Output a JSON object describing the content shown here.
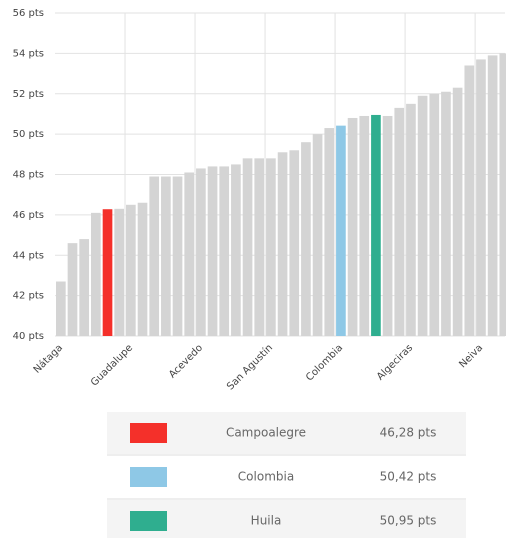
{
  "chart_data": {
    "type": "bar",
    "categories": [
      "Nátaga",
      null,
      null,
      null,
      null,
      null,
      "Guadalupe",
      null,
      null,
      null,
      null,
      null,
      "Acevedo",
      null,
      null,
      null,
      null,
      null,
      "San Agustín",
      null,
      null,
      null,
      null,
      null,
      "Colombia",
      null,
      null,
      null,
      null,
      null,
      "Algeciras",
      null,
      null,
      null,
      null,
      null,
      "Neiva",
      null,
      null
    ],
    "values": [
      42.7,
      44.6,
      44.8,
      46.1,
      46.28,
      46.3,
      46.5,
      46.6,
      47.9,
      47.9,
      47.9,
      48.1,
      48.3,
      48.4,
      48.4,
      48.5,
      48.8,
      48.8,
      48.8,
      49.1,
      49.2,
      49.6,
      50.0,
      50.3,
      50.42,
      50.8,
      50.9,
      50.95,
      50.9,
      51.3,
      51.5,
      51.9,
      52.0,
      52.1,
      52.3,
      53.4,
      53.7,
      53.9,
      54.0
    ],
    "colors": [
      "#d4d4d4",
      "#d4d4d4",
      "#d4d4d4",
      "#d4d4d4",
      "#f4302a",
      "#d4d4d4",
      "#d4d4d4",
      "#d4d4d4",
      "#d4d4d4",
      "#d4d4d4",
      "#d4d4d4",
      "#d4d4d4",
      "#d4d4d4",
      "#d4d4d4",
      "#d4d4d4",
      "#d4d4d4",
      "#d4d4d4",
      "#d4d4d4",
      "#d4d4d4",
      "#d4d4d4",
      "#d4d4d4",
      "#d4d4d4",
      "#d4d4d4",
      "#d4d4d4",
      "#8ec8e6",
      "#d4d4d4",
      "#d4d4d4",
      "#2fae8f",
      "#d4d4d4",
      "#d4d4d4",
      "#d4d4d4",
      "#d4d4d4",
      "#d4d4d4",
      "#d4d4d4",
      "#d4d4d4",
      "#d4d4d4",
      "#d4d4d4",
      "#d4d4d4",
      "#d4d4d4"
    ],
    "ylim": [
      40,
      56
    ],
    "yticks": [
      {
        "value": 40,
        "label": "40 pts"
      },
      {
        "value": 42,
        "label": "42 pts"
      },
      {
        "value": 44,
        "label": "44 pts"
      },
      {
        "value": 46,
        "label": "46 pts"
      },
      {
        "value": 48,
        "label": "48 pts"
      },
      {
        "value": 50,
        "label": "50 pts"
      },
      {
        "value": 52,
        "label": "52 pts"
      },
      {
        "value": 54,
        "label": "54 pts"
      },
      {
        "value": 56,
        "label": "56 pts"
      }
    ],
    "grid": true,
    "legend": [
      {
        "name": "Campoalegre",
        "color": "#f4302a",
        "value_label": "46,28 pts"
      },
      {
        "name": "Colombia",
        "color": "#8ec8e6",
        "value_label": "50,42 pts"
      },
      {
        "name": "Huila",
        "color": "#2fae8f",
        "value_label": "50,95 pts"
      }
    ]
  }
}
